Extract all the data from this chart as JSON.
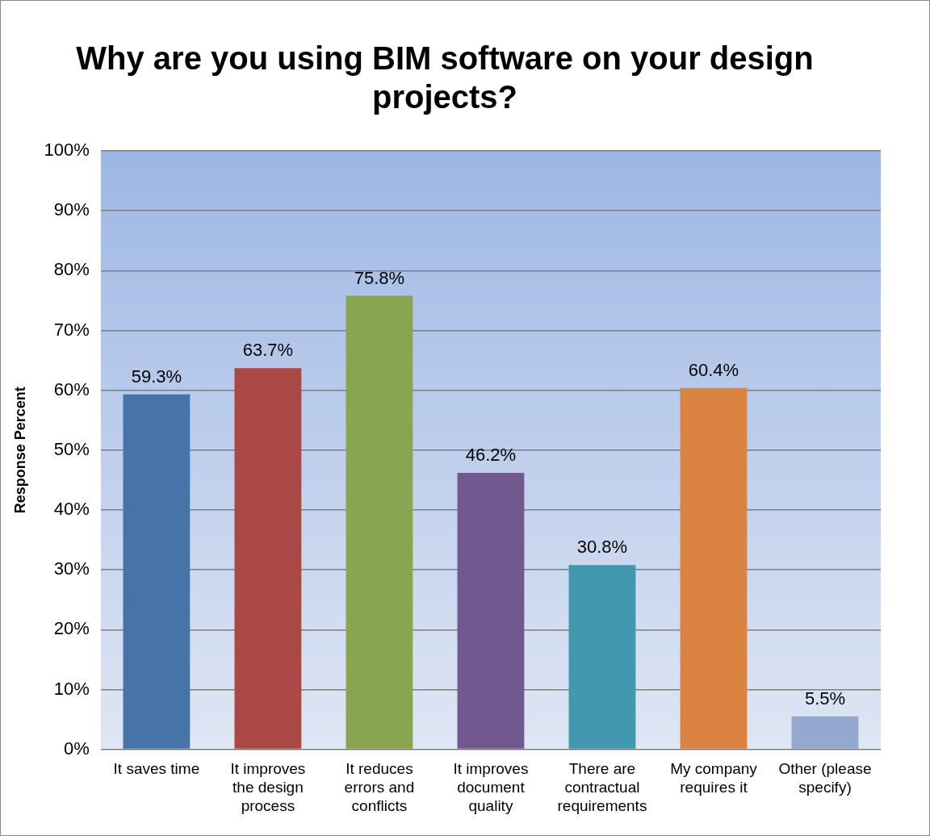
{
  "chart_data": {
    "type": "bar",
    "title": "Why are you using BIM software on your design projects?",
    "ylabel": "Response Percent",
    "categories": [
      "It saves time",
      "It improves the design process",
      "It reduces errors and conflicts",
      "It improves document quality",
      "There are contractual requirements",
      "My company requires it",
      "Other (please specify)"
    ],
    "values": [
      59.3,
      63.7,
      75.8,
      46.2,
      30.8,
      60.4,
      5.5
    ],
    "colors": [
      "#4674a8",
      "#aa4845",
      "#8aa54f",
      "#71588f",
      "#4198af",
      "#db8340",
      "#93a9cf"
    ],
    "value_labels": [
      "59.3%",
      "63.7%",
      "75.8%",
      "46.2%",
      "30.8%",
      "60.4%",
      "5.5%"
    ],
    "ylim": [
      0,
      100
    ],
    "yticks": [
      {
        "value": 0,
        "label": "0%"
      },
      {
        "value": 10,
        "label": "10%"
      },
      {
        "value": 20,
        "label": "20%"
      },
      {
        "value": 30,
        "label": "30%"
      },
      {
        "value": 40,
        "label": "40%"
      },
      {
        "value": 50,
        "label": "50%"
      },
      {
        "value": 60,
        "label": "60%"
      },
      {
        "value": 70,
        "label": "70%"
      },
      {
        "value": 80,
        "label": "80%"
      },
      {
        "value": 90,
        "label": "90%"
      },
      {
        "value": 100,
        "label": "100%"
      }
    ],
    "grid": "y",
    "legend": false
  }
}
